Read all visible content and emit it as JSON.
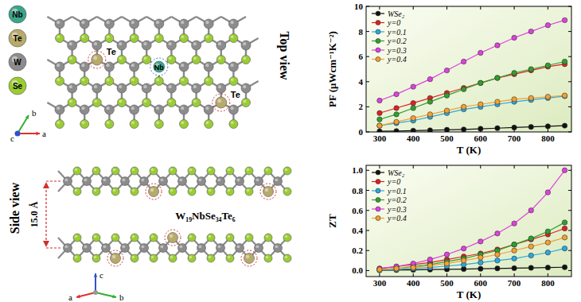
{
  "chart_data": [
    {
      "type": "line",
      "y_label": "PF (μWcm⁻¹K⁻²)",
      "x_label": "T (K)",
      "x": [
        300,
        350,
        400,
        450,
        500,
        550,
        600,
        650,
        700,
        750,
        800,
        850
      ],
      "xlim": [
        260,
        870
      ],
      "xticks": [
        300,
        400,
        500,
        600,
        700,
        800
      ],
      "ylim": [
        0,
        10
      ],
      "yticks": [
        0,
        2,
        4,
        6,
        8,
        10
      ],
      "grid": false,
      "legend": "upper left",
      "marker": "circle",
      "line_style": "solid",
      "series": [
        {
          "name": "WSe₂",
          "color": "#111111",
          "values": [
            0.05,
            0.07,
            0.1,
            0.13,
            0.17,
            0.2,
            0.25,
            0.3,
            0.35,
            0.4,
            0.45,
            0.5
          ]
        },
        {
          "name": "y=0",
          "color": "#e02020",
          "values": [
            1.5,
            1.9,
            2.3,
            2.7,
            3.1,
            3.5,
            3.9,
            4.3,
            4.6,
            4.9,
            5.2,
            5.4
          ]
        },
        {
          "name": "y=0.1",
          "color": "#2aa8e0",
          "values": [
            0.5,
            0.7,
            0.9,
            1.2,
            1.5,
            1.8,
            2.0,
            2.2,
            2.4,
            2.55,
            2.7,
            2.85
          ]
        },
        {
          "name": "y=0.2",
          "color": "#2ea02e",
          "values": [
            1.0,
            1.4,
            1.9,
            2.4,
            2.9,
            3.4,
            3.9,
            4.3,
            4.7,
            5.0,
            5.3,
            5.6
          ]
        },
        {
          "name": "y=0.3",
          "color": "#e040e0",
          "values": [
            2.5,
            3.0,
            3.6,
            4.2,
            4.9,
            5.6,
            6.3,
            6.9,
            7.5,
            8.0,
            8.5,
            8.9
          ]
        },
        {
          "name": "y=0.4",
          "color": "#f5a030",
          "values": [
            0.5,
            0.8,
            1.1,
            1.4,
            1.7,
            2.0,
            2.2,
            2.4,
            2.6,
            2.7,
            2.8,
            2.9
          ]
        }
      ]
    },
    {
      "type": "line",
      "y_label": "ZT",
      "x_label": "T (K)",
      "x": [
        300,
        350,
        400,
        450,
        500,
        550,
        600,
        650,
        700,
        750,
        800,
        850
      ],
      "xlim": [
        260,
        870
      ],
      "xticks": [
        300,
        400,
        500,
        600,
        700,
        800
      ],
      "ylim": [
        -0.06,
        1.05
      ],
      "yticks": [
        {
          "value": 0,
          "label": "0.0"
        },
        {
          "value": 0.2,
          "label": "0.2"
        },
        {
          "value": 0.4,
          "label": "0.4"
        },
        {
          "value": 0.6,
          "label": "0.6"
        },
        {
          "value": 0.8,
          "label": "0.8"
        },
        {
          "value": 1,
          "label": "1.0"
        }
      ],
      "grid": false,
      "legend": "upper left",
      "marker": "circle",
      "line_style": "solid",
      "series": [
        {
          "name": "WSe₂",
          "color": "#111111",
          "values": [
            0.003,
            0.005,
            0.007,
            0.01,
            0.012,
            0.015,
            0.018,
            0.021,
            0.024,
            0.027,
            0.03,
            0.033
          ]
        },
        {
          "name": "y=0",
          "color": "#e02020",
          "values": [
            0.02,
            0.04,
            0.06,
            0.08,
            0.11,
            0.14,
            0.17,
            0.21,
            0.26,
            0.31,
            0.36,
            0.42
          ]
        },
        {
          "name": "y=0.1",
          "color": "#2aa8e0",
          "values": [
            0.005,
            0.01,
            0.02,
            0.03,
            0.045,
            0.06,
            0.08,
            0.1,
            0.12,
            0.15,
            0.18,
            0.22
          ]
        },
        {
          "name": "y=0.2",
          "color": "#2ea02e",
          "values": [
            0.01,
            0.02,
            0.04,
            0.06,
            0.09,
            0.12,
            0.16,
            0.2,
            0.26,
            0.32,
            0.39,
            0.48
          ]
        },
        {
          "name": "y=0.3",
          "color": "#e040e0",
          "values": [
            0.02,
            0.04,
            0.07,
            0.11,
            0.16,
            0.22,
            0.29,
            0.37,
            0.47,
            0.6,
            0.78,
            1.0
          ]
        },
        {
          "name": "y=0.4",
          "color": "#f5a030",
          "values": [
            0.01,
            0.02,
            0.03,
            0.05,
            0.07,
            0.1,
            0.13,
            0.16,
            0.2,
            0.24,
            0.28,
            0.33
          ]
        }
      ]
    }
  ],
  "diagram": {
    "legend": [
      "Nb",
      "Te",
      "W",
      "Se"
    ],
    "top_view": {
      "title": "Top view",
      "labels": [
        "Te",
        "Te",
        "Nb"
      ],
      "axes": [
        "b",
        "c",
        "a"
      ]
    },
    "side_view": {
      "title": "Side view",
      "interlayer": "15.0 Å",
      "formula": "W₁₉NbSe₃₄Te₆",
      "axes": [
        "c",
        "a",
        "b"
      ]
    }
  }
}
